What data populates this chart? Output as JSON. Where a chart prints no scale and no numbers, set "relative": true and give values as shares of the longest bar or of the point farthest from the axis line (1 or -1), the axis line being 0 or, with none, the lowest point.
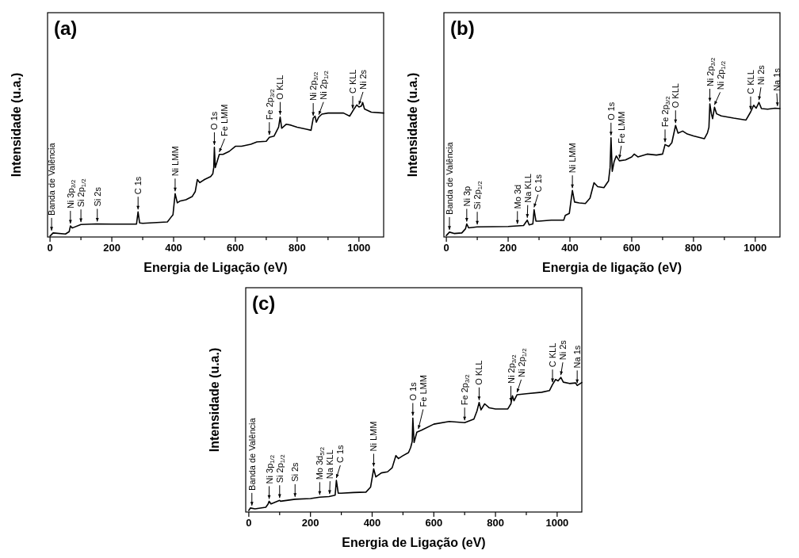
{
  "chart_data": [
    {
      "type": "line",
      "title": "(a)",
      "xlabel": "Energia de Ligação (eV)",
      "ylabel": "Intensidade (u.a.)",
      "relative": true,
      "xlim": [
        -8,
        1080
      ],
      "xticks": [
        0,
        {
          "value": 100,
          "label": null
        },
        200,
        {
          "value": 300,
          "label": null
        },
        400,
        {
          "value": 500,
          "label": null
        },
        600,
        {
          "value": 700,
          "label": null
        },
        800,
        {
          "value": 900,
          "label": null
        },
        1000
      ],
      "series": [
        {
          "color": "#000000",
          "x": [
            0,
            10,
            50,
            62,
            66,
            72,
            100,
            150,
            200,
            280,
            285,
            290,
            300,
            380,
            390,
            398,
            405,
            412,
            420,
            440,
            460,
            470,
            477,
            485,
            500,
            520,
            527,
            530,
            532,
            535,
            540,
            548,
            560,
            580,
            600,
            620,
            650,
            670,
            700,
            710,
            725,
            740,
            745,
            750,
            765,
            780,
            800,
            830,
            845,
            852,
            858,
            862,
            870,
            880,
            900,
            950,
            970,
            980,
            993,
            1000,
            1008,
            1012,
            1018,
            1040,
            1080
          ],
          "values": [
            0.007,
            0.03,
            0.022,
            0.04,
            0.082,
            0.067,
            0.093,
            0.097,
            0.096,
            0.096,
            0.187,
            0.105,
            0.102,
            0.112,
            0.142,
            0.165,
            0.322,
            0.254,
            0.266,
            0.277,
            0.3,
            0.337,
            0.427,
            0.404,
            0.427,
            0.449,
            0.47,
            0.516,
            0.666,
            0.516,
            0.554,
            0.614,
            0.614,
            0.636,
            0.674,
            0.674,
            0.689,
            0.707,
            0.711,
            0.741,
            0.749,
            0.816,
            0.891,
            0.808,
            0.838,
            0.831,
            0.816,
            0.801,
            0.793,
            0.883,
            0.898,
            0.853,
            0.891,
            0.913,
            0.921,
            0.921,
            0.898,
            0.936,
            0.981,
            0.966,
            0.973,
            1.0,
            0.951,
            0.928,
            0.921
          ]
        }
      ],
      "annotations": [
        {
          "text": "Banda de Valência",
          "x": 5,
          "y": 0.03
        },
        {
          "text": "Ni 3p$_{3/2}$",
          "x": 66,
          "y": 0.082
        },
        {
          "text": "Si 2p$_{1/2}$",
          "x": 100,
          "y": 0.093
        },
        {
          "text": "Si 2s",
          "x": 153,
          "y": 0.097
        },
        {
          "text": "C 1s",
          "x": 285,
          "y": 0.187
        },
        {
          "text": "Ni LMM",
          "x": 405,
          "y": 0.322
        },
        {
          "text": "O 1s",
          "x": 532,
          "y": 0.666
        },
        {
          "text": "Fe LMM",
          "x": 548,
          "y": 0.614
        },
        {
          "text": "Fe 2p$_{3/2}$",
          "x": 710,
          "y": 0.741
        },
        {
          "text": "O KLL",
          "x": 745,
          "y": 0.891
        },
        {
          "text": "Ni 2p$_{3/2}$",
          "x": 852,
          "y": 0.883
        },
        {
          "text": "Ni 2p$_{1/2}$",
          "x": 870,
          "y": 0.891
        },
        {
          "text": "C KLL",
          "x": 980,
          "y": 0.936
        },
        {
          "text": "Ni 2s",
          "x": 1000,
          "y": 0.966
        }
      ]
    },
    {
      "type": "line",
      "title": "(b)",
      "xlabel": "Energia de ligação (eV)",
      "ylabel": "Intensidade (u.a.)",
      "relative": true,
      "xlim": [
        -8,
        1080
      ],
      "xticks": [
        0,
        {
          "value": 100,
          "label": null
        },
        200,
        {
          "value": 300,
          "label": null
        },
        400,
        {
          "value": 500,
          "label": null
        },
        600,
        {
          "value": 700,
          "label": null
        },
        800,
        {
          "value": 900,
          "label": null
        },
        1000
      ],
      "series": [
        {
          "color": "#000000",
          "x": [
            0,
            10,
            25,
            50,
            62,
            66,
            72,
            100,
            200,
            250,
            262,
            268,
            280,
            284,
            290,
            300,
            340,
            380,
            385,
            398,
            408,
            415,
            430,
            450,
            465,
            478,
            490,
            510,
            525,
            530,
            533,
            537,
            543,
            550,
            560,
            580,
            600,
            608,
            620,
            650,
            680,
            700,
            708,
            720,
            730,
            742,
            750,
            765,
            780,
            800,
            835,
            845,
            850,
            853,
            858,
            862,
            868,
            875,
            890,
            930,
            970,
            985,
            995,
            1003,
            1012,
            1020,
            1040,
            1064,
            1080
          ],
          "values": [
            0.011,
            0.036,
            0.026,
            0.03,
            0.061,
            0.097,
            0.068,
            0.075,
            0.078,
            0.085,
            0.125,
            0.09,
            0.097,
            0.203,
            0.118,
            0.118,
            0.125,
            0.125,
            0.161,
            0.175,
            0.346,
            0.26,
            0.253,
            0.249,
            0.289,
            0.403,
            0.374,
            0.367,
            0.417,
            0.516,
            0.737,
            0.488,
            0.559,
            0.602,
            0.566,
            0.573,
            0.595,
            0.616,
            0.595,
            0.616,
            0.609,
            0.616,
            0.687,
            0.673,
            0.701,
            0.829,
            0.772,
            0.787,
            0.765,
            0.751,
            0.73,
            0.772,
            0.815,
            0.989,
            0.915,
            0.879,
            0.964,
            0.915,
            0.9,
            0.883,
            0.869,
            0.929,
            0.979,
            0.957,
            1.0,
            0.954,
            0.95,
            0.957,
            0.954
          ]
        }
      ],
      "annotations": [
        {
          "text": "Banda de Valência",
          "x": 10,
          "y": 0.036
        },
        {
          "text": "Ni 3p",
          "x": 66,
          "y": 0.097
        },
        {
          "text": "Si 2p$_{1/2}$",
          "x": 100,
          "y": 0.075
        },
        {
          "text": "Mo 3d",
          "x": 230,
          "y": 0.08
        },
        {
          "text": "Na KLL",
          "x": 262,
          "y": 0.125
        },
        {
          "text": "C 1s",
          "x": 284,
          "y": 0.203
        },
        {
          "text": "Ni LMM",
          "x": 408,
          "y": 0.346
        },
        {
          "text": "O 1s",
          "x": 533,
          "y": 0.737
        },
        {
          "text": "Fe LMM",
          "x": 560,
          "y": 0.566
        },
        {
          "text": "Fe 2p$_{3/2}$",
          "x": 708,
          "y": 0.687
        },
        {
          "text": "O KLL",
          "x": 742,
          "y": 0.829
        },
        {
          "text": "Ni 2p$_{3/2}$",
          "x": 853,
          "y": 0.989
        },
        {
          "text": "Ni 2p$_{1/2}$",
          "x": 868,
          "y": 0.964
        },
        {
          "text": "C KLL",
          "x": 985,
          "y": 0.929
        },
        {
          "text": "Ni 2s",
          "x": 1012,
          "y": 1.0
        },
        {
          "text": "Na 1s",
          "x": 1072,
          "y": 0.955
        }
      ]
    },
    {
      "type": "line",
      "title": "(c)",
      "xlabel": "Energia de Ligação (eV)",
      "ylabel": "Intensidade (u.a.)",
      "relative": true,
      "xlim": [
        -10,
        1080
      ],
      "xticks": [
        0,
        {
          "value": 100,
          "label": null
        },
        200,
        {
          "value": 300,
          "label": null
        },
        400,
        {
          "value": 500,
          "label": null
        },
        600,
        {
          "value": 700,
          "label": null
        },
        800,
        {
          "value": 900,
          "label": null
        },
        1000
      ],
      "series": [
        {
          "color": "#000000",
          "x": [
            0,
            5,
            20,
            55,
            62,
            66,
            72,
            100,
            103,
            150,
            200,
            230,
            260,
            280,
            284,
            290,
            300,
            340,
            380,
            395,
            405,
            412,
            430,
            450,
            465,
            477,
            485,
            500,
            518,
            525,
            530,
            532,
            536,
            545,
            560,
            600,
            650,
            700,
            730,
            740,
            747,
            753,
            765,
            780,
            800,
            840,
            850,
            855,
            860,
            870,
            900,
            950,
            975,
            985,
            995,
            1003,
            1012,
            1020,
            1040,
            1060,
            1065,
            1080
          ],
          "values": [
            0.012,
            0.03,
            0.024,
            0.035,
            0.057,
            0.08,
            0.06,
            0.087,
            0.08,
            0.095,
            0.1,
            0.11,
            0.115,
            0.125,
            0.235,
            0.14,
            0.14,
            0.145,
            0.148,
            0.186,
            0.321,
            0.261,
            0.291,
            0.299,
            0.329,
            0.419,
            0.397,
            0.419,
            0.442,
            0.48,
            0.525,
            0.698,
            0.517,
            0.593,
            0.608,
            0.653,
            0.673,
            0.664,
            0.691,
            0.751,
            0.814,
            0.759,
            0.804,
            0.774,
            0.766,
            0.766,
            0.804,
            0.864,
            0.827,
            0.872,
            0.879,
            0.89,
            0.902,
            0.947,
            0.985,
            0.974,
            1.0,
            0.965,
            0.955,
            0.959,
            0.94,
            0.962
          ]
        }
      ],
      "annotations": [
        {
          "text": "Banda de Valência",
          "x": 10,
          "y": 0.03
        },
        {
          "text": "Ni 3p$_{1/2}$",
          "x": 66,
          "y": 0.08
        },
        {
          "text": "Si 2p$_{1/2}$",
          "x": 100,
          "y": 0.087
        },
        {
          "text": "Si 2s",
          "x": 150,
          "y": 0.095
        },
        {
          "text": "Mo 3d$_{5/2}$",
          "x": 230,
          "y": 0.11
        },
        {
          "text": "Na KLL",
          "x": 262,
          "y": 0.117
        },
        {
          "text": "C 1s",
          "x": 284,
          "y": 0.235
        },
        {
          "text": "Ni LMM",
          "x": 405,
          "y": 0.321
        },
        {
          "text": "O 1s",
          "x": 532,
          "y": 0.698
        },
        {
          "text": "Fe LMM",
          "x": 550,
          "y": 0.6
        },
        {
          "text": "Fe 2p$_{3/2}$",
          "x": 700,
          "y": 0.664
        },
        {
          "text": "O KLL",
          "x": 747,
          "y": 0.814
        },
        {
          "text": "Ni 2p$_{3/2}$",
          "x": 850,
          "y": 0.804
        },
        {
          "text": "Ni 2p$_{1/2}$",
          "x": 870,
          "y": 0.872
        },
        {
          "text": "C KLL",
          "x": 985,
          "y": 0.947
        },
        {
          "text": "Ni 2s",
          "x": 1012,
          "y": 1.0
        },
        {
          "text": "Na 1s",
          "x": 1065,
          "y": 0.94
        }
      ]
    }
  ]
}
